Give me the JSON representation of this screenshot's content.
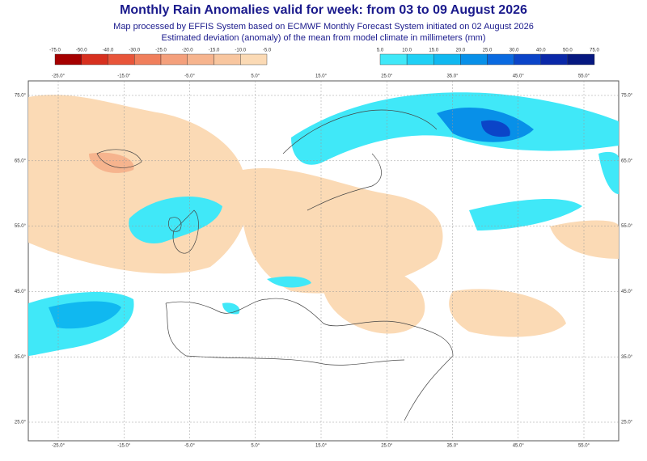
{
  "header": {
    "title": "Monthly Rain Anomalies valid for week: from 03 to 09 August 2026",
    "subtitle": [
      "Map processed by EFFIS System based on ECMWF Monthly Forecast System initiated on 02 August 2026",
      "Estimated deviation (anomaly) of the mean from model climate in millimeters (mm)"
    ]
  },
  "legend": {
    "negative": {
      "labels": [
        "-75.0",
        "-50.0",
        "-40.0",
        "-30.0",
        "-25.0",
        "-20.0",
        "-15.0",
        "-10.0",
        "-5.0"
      ],
      "colors": [
        "#a50000",
        "#d7301f",
        "#e8553a",
        "#f07f5c",
        "#f4a07c",
        "#f6b48e",
        "#f8c69f",
        "#fbdab5"
      ]
    },
    "positive": {
      "labels": [
        "5.0",
        "10.0",
        "15.0",
        "20.0",
        "25.0",
        "30.0",
        "40.0",
        "50.0",
        "75.0"
      ],
      "colors": [
        "#40e8f8",
        "#20d0f5",
        "#10b8f0",
        "#0890e8",
        "#0a6ae0",
        "#0b44c8",
        "#0a28a8",
        "#061880"
      ]
    }
  },
  "map": {
    "longitude_labels": [
      "-25.0°",
      "-15.0°",
      "-5.0°",
      "5.0°",
      "15.0°",
      "25.0°",
      "35.0°",
      "45.0°",
      "55.0°"
    ],
    "latitude_labels": [
      "75.0°",
      "65.0°",
      "55.0°",
      "45.0°",
      "35.0°",
      "25.0°"
    ]
  }
}
